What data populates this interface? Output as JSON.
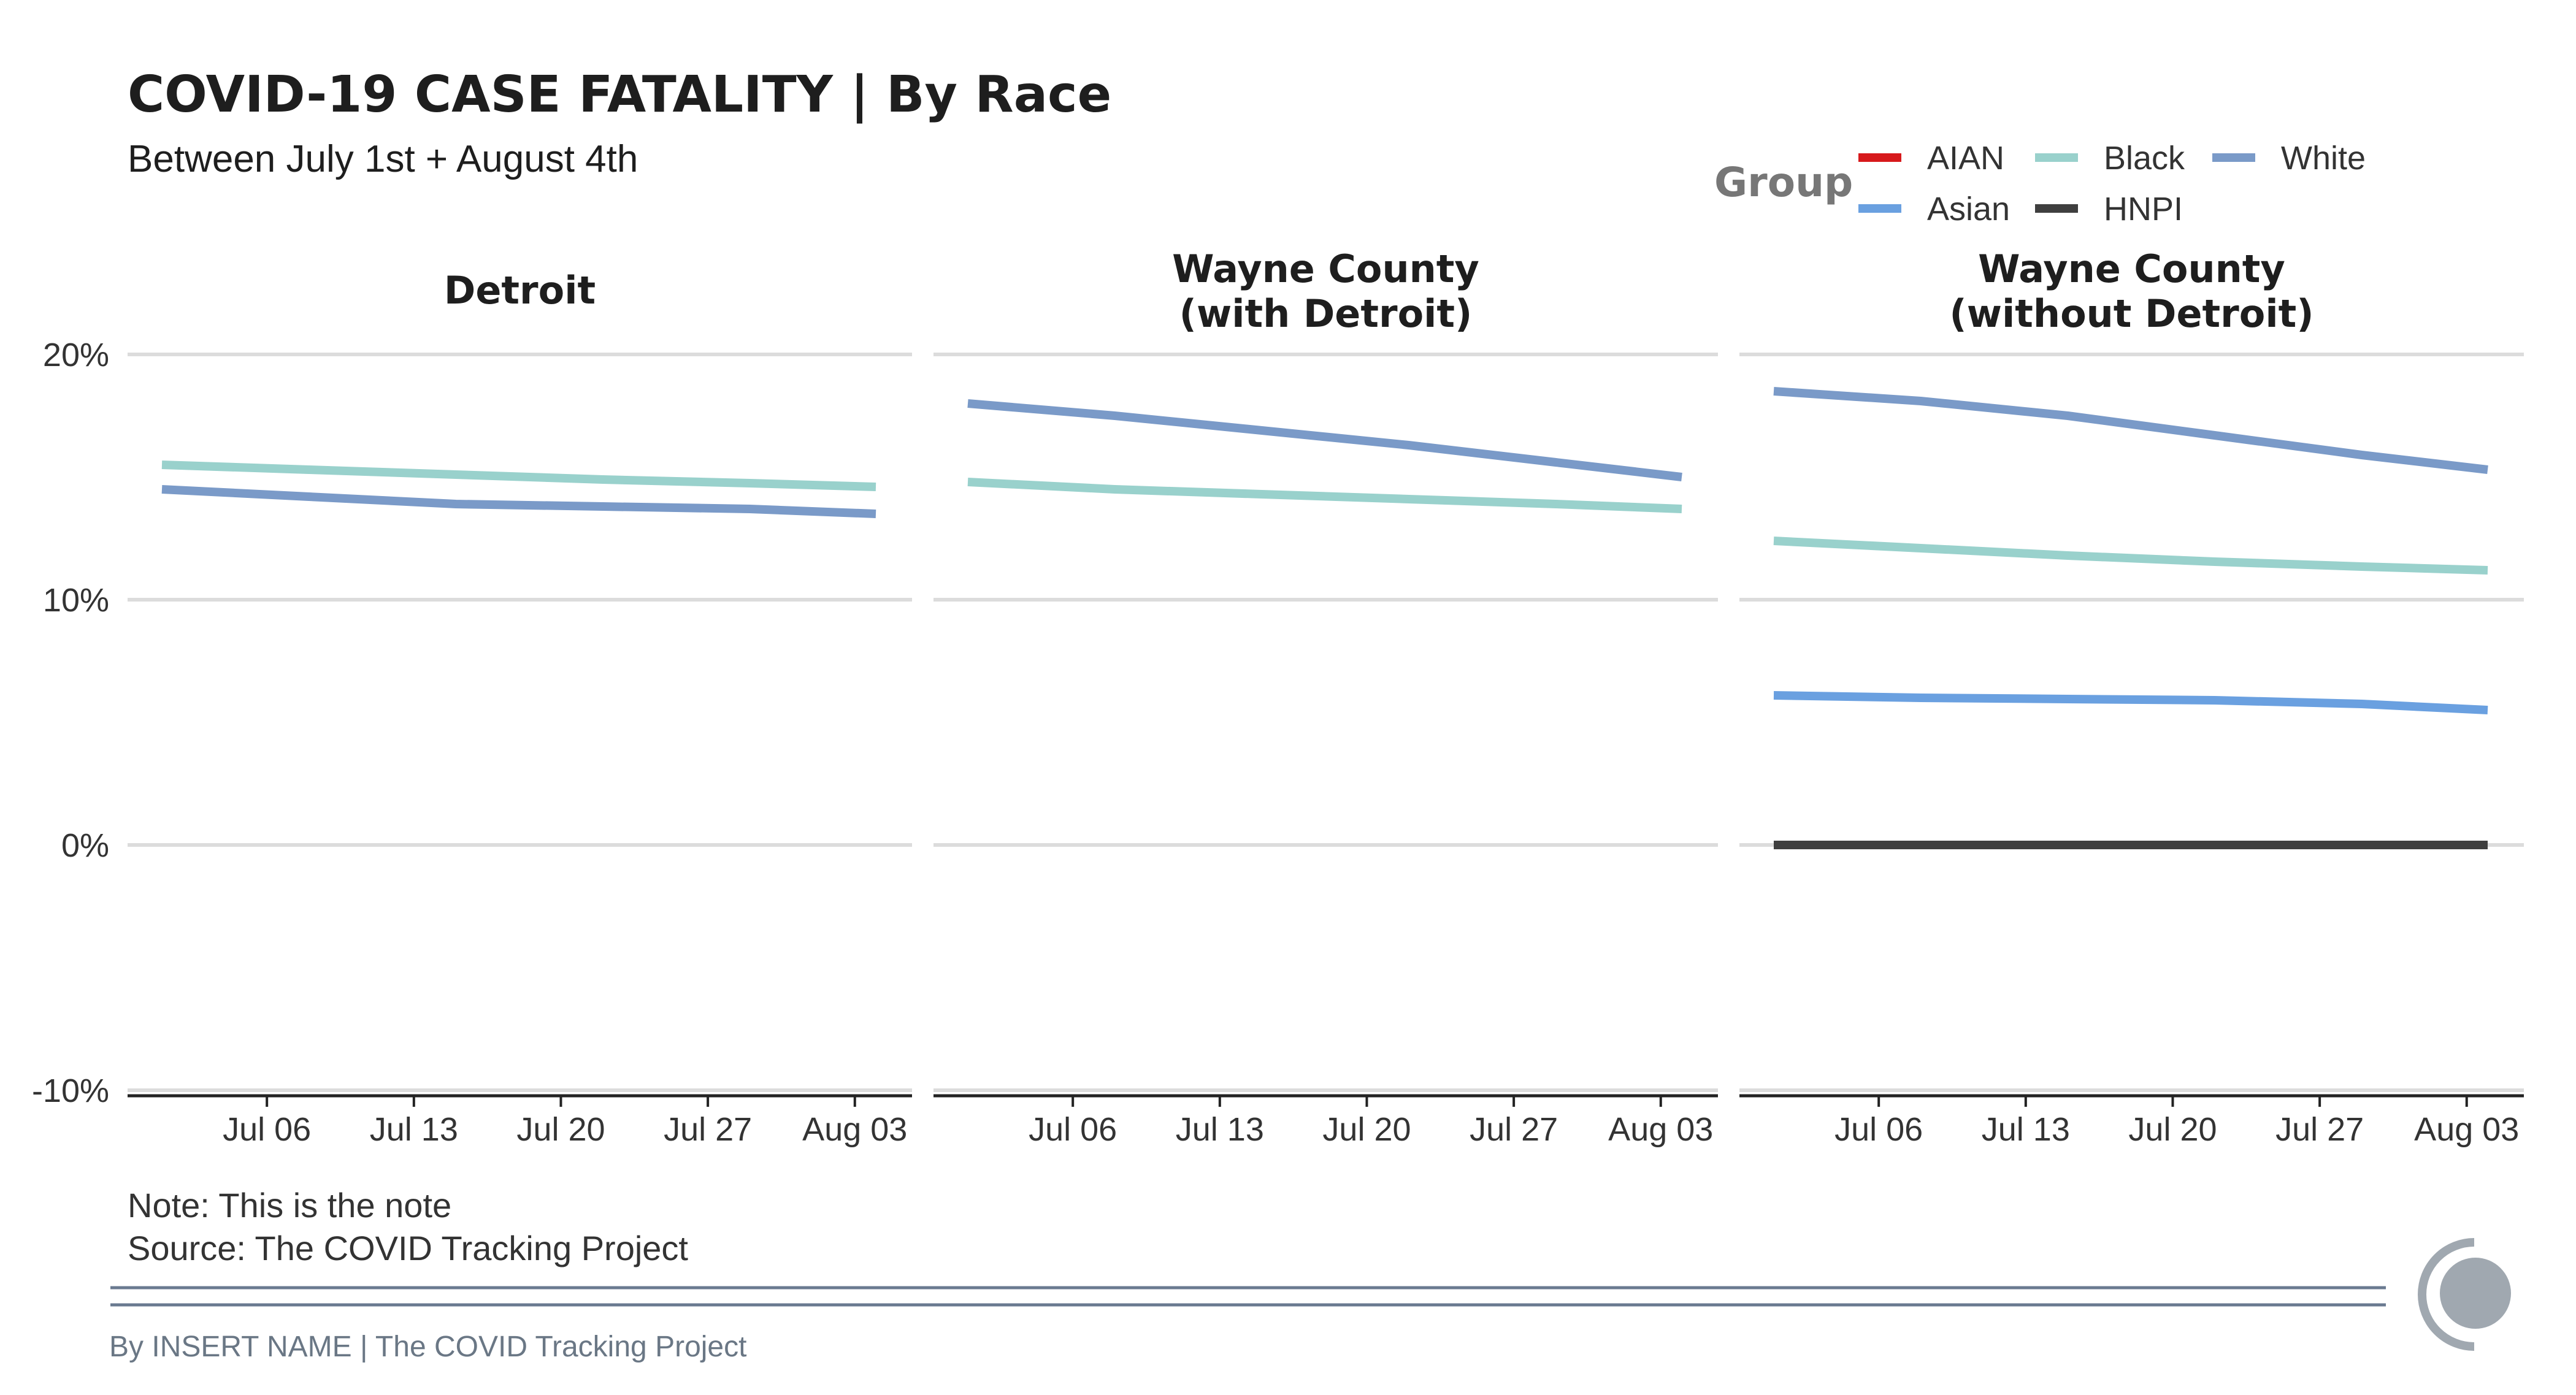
{
  "title": "COVID-19 CASE FATALITY | By Race",
  "subtitle": "Between July 1st + August 4th",
  "note": "Note: This is the note",
  "source": "Source: The COVID Tracking Project",
  "credit": "By INSERT NAME | The COVID Tracking Project",
  "legend": {
    "title": "Group",
    "items": [
      {
        "name": "AIAN",
        "color": "#d7191c"
      },
      {
        "name": "Black",
        "color": "#99d1cc"
      },
      {
        "name": "White",
        "color": "#7a9ac8"
      },
      {
        "name": "Asian",
        "color": "#6aa0e0"
      },
      {
        "name": "HNPI",
        "color": "#3f3f3f"
      }
    ]
  },
  "logo_icon": "ctp-logo-icon",
  "chart_data": {
    "type": "line",
    "x_ticks": [
      "Jul 06",
      "Jul 13",
      "Jul 20",
      "Jul 27",
      "Aug 03"
    ],
    "x_range": [
      "2020-07-01",
      "2020-08-04"
    ],
    "y_ticks": [
      "20%",
      "10%",
      "0%",
      "-10%"
    ],
    "ylim": [
      -10,
      20
    ],
    "grid": true,
    "legend_position": "top-right",
    "panels": [
      {
        "title": "Detroit",
        "title_lines": [
          "Detroit"
        ],
        "series": [
          {
            "name": "Black",
            "color": "#99d1cc",
            "x": [
              "2020-07-01",
              "2020-07-08",
              "2020-07-15",
              "2020-07-22",
              "2020-07-29",
              "2020-08-04"
            ],
            "y": [
              15.5,
              15.3,
              15.1,
              14.9,
              14.75,
              14.6
            ]
          },
          {
            "name": "White",
            "color": "#7a9ac8",
            "x": [
              "2020-07-01",
              "2020-07-08",
              "2020-07-15",
              "2020-07-22",
              "2020-07-29",
              "2020-08-04"
            ],
            "y": [
              14.5,
              14.2,
              13.9,
              13.8,
              13.7,
              13.5
            ]
          }
        ]
      },
      {
        "title": "Wayne County (with Detroit)",
        "title_lines": [
          "Wayne County",
          "(with Detroit)"
        ],
        "series": [
          {
            "name": "White",
            "color": "#7a9ac8",
            "x": [
              "2020-07-01",
              "2020-07-08",
              "2020-07-15",
              "2020-07-22",
              "2020-07-29",
              "2020-08-04"
            ],
            "y": [
              18.0,
              17.5,
              16.9,
              16.3,
              15.6,
              15.0
            ]
          },
          {
            "name": "Black",
            "color": "#99d1cc",
            "x": [
              "2020-07-01",
              "2020-07-08",
              "2020-07-15",
              "2020-07-22",
              "2020-07-29",
              "2020-08-04"
            ],
            "y": [
              14.8,
              14.5,
              14.3,
              14.1,
              13.9,
              13.7
            ]
          }
        ]
      },
      {
        "title": "Wayne County (without Detroit)",
        "title_lines": [
          "Wayne County",
          "(without Detroit)"
        ],
        "series": [
          {
            "name": "White",
            "color": "#7a9ac8",
            "x": [
              "2020-07-01",
              "2020-07-08",
              "2020-07-15",
              "2020-07-22",
              "2020-07-29",
              "2020-08-04"
            ],
            "y": [
              18.5,
              18.1,
              17.5,
              16.7,
              15.9,
              15.3
            ]
          },
          {
            "name": "Black",
            "color": "#99d1cc",
            "x": [
              "2020-07-01",
              "2020-07-08",
              "2020-07-15",
              "2020-07-22",
              "2020-07-29",
              "2020-08-04"
            ],
            "y": [
              12.4,
              12.1,
              11.8,
              11.55,
              11.35,
              11.2
            ]
          },
          {
            "name": "Asian",
            "color": "#6aa0e0",
            "x": [
              "2020-07-01",
              "2020-07-08",
              "2020-07-15",
              "2020-07-22",
              "2020-07-29",
              "2020-08-04"
            ],
            "y": [
              6.1,
              6.0,
              5.95,
              5.9,
              5.75,
              5.5
            ]
          },
          {
            "name": "HNPI",
            "color": "#3f3f3f",
            "x": [
              "2020-07-01",
              "2020-07-08",
              "2020-07-15",
              "2020-07-22",
              "2020-07-29",
              "2020-08-04"
            ],
            "y": [
              0,
              0,
              0,
              0,
              0,
              0
            ]
          }
        ]
      }
    ]
  }
}
